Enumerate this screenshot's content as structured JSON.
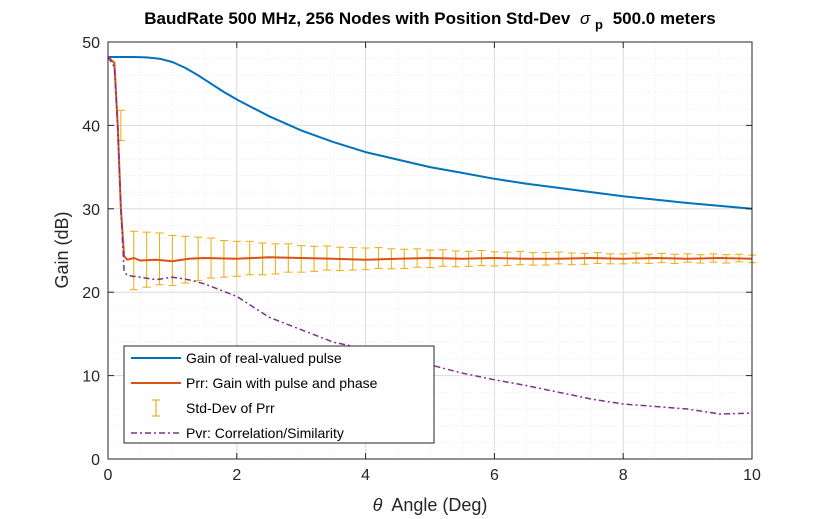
{
  "chart_data": {
    "type": "line",
    "title_main": "BaudRate 500 MHz, 256 Nodes with Position Std-Dev",
    "title_symbol": "σ",
    "title_subscript": "p",
    "title_tail": "500.0 meters",
    "xlabel_symbol": "θ",
    "xlabel_text": "Angle (Deg)",
    "ylabel": "Gain (dB)",
    "xlim": [
      0,
      10
    ],
    "ylim": [
      0,
      50
    ],
    "xticks": [
      "0",
      "2",
      "4",
      "6",
      "8",
      "10"
    ],
    "yticks": [
      "0",
      "10",
      "20",
      "30",
      "40",
      "50"
    ],
    "grid": true,
    "minor_grid": true,
    "legend_position": "bottom-left",
    "series": [
      {
        "name": "Gain of real-valued pulse",
        "style": "solid",
        "color": "#0072BD",
        "x": [
          0,
          0.2,
          0.4,
          0.6,
          0.8,
          1.0,
          1.2,
          1.4,
          1.6,
          1.8,
          2.0,
          2.5,
          3.0,
          3.5,
          4.0,
          4.5,
          5.0,
          5.5,
          6.0,
          6.5,
          7.0,
          7.5,
          8.0,
          8.5,
          9.0,
          9.5,
          10.0
        ],
        "values": [
          48.2,
          48.2,
          48.2,
          48.15,
          48.0,
          47.6,
          46.9,
          46.0,
          45.0,
          44.0,
          43.1,
          41.1,
          39.4,
          38.0,
          36.8,
          35.9,
          35.0,
          34.3,
          33.6,
          33.0,
          32.5,
          32.0,
          31.5,
          31.1,
          30.7,
          30.35,
          30.0
        ]
      },
      {
        "name": "Prr: Gain with pulse and phase",
        "style": "solid",
        "color": "#D95319",
        "x": [
          0,
          0.1,
          0.15,
          0.2,
          0.25,
          0.3,
          0.4,
          0.5,
          0.75,
          1.0,
          1.25,
          1.5,
          2.0,
          2.5,
          3.0,
          3.5,
          4.0,
          4.5,
          5.0,
          5.5,
          6.0,
          6.5,
          7.0,
          7.5,
          8.0,
          8.5,
          9.0,
          9.5,
          10.0
        ],
        "values": [
          48.2,
          47.5,
          40.0,
          30.0,
          24.3,
          23.9,
          24.1,
          23.8,
          23.9,
          23.7,
          24.0,
          24.1,
          24.0,
          24.2,
          24.1,
          24.0,
          23.9,
          24.0,
          24.1,
          24.0,
          24.1,
          24.0,
          24.0,
          24.1,
          24.0,
          24.1,
          24.0,
          24.1,
          24.0
        ]
      },
      {
        "name": "Pvr: Correlation/Similarity",
        "style": "dashdot",
        "color": "#7E2F8E",
        "x": [
          0,
          0.1,
          0.15,
          0.2,
          0.25,
          0.3,
          0.5,
          0.75,
          1.0,
          1.25,
          1.5,
          2.0,
          2.5,
          3.0,
          3.5,
          4.0,
          4.5,
          5.0,
          5.5,
          6.0,
          6.5,
          7.0,
          7.5,
          8.0,
          8.5,
          9.0,
          9.5,
          10.0
        ],
        "values": [
          48.2,
          47.0,
          40.0,
          30.0,
          22.5,
          22.0,
          21.8,
          21.5,
          21.8,
          21.5,
          21.0,
          19.5,
          17.0,
          15.5,
          14.0,
          13.2,
          12.3,
          11.3,
          10.3,
          9.5,
          8.8,
          8.0,
          7.2,
          6.6,
          6.3,
          6.0,
          5.4,
          5.5
        ]
      }
    ],
    "errorbars": {
      "name": "Std-Dev of Prr",
      "color": "#EDB120",
      "x": [
        0.2,
        0.4,
        0.6,
        0.8,
        1.0,
        1.2,
        1.4,
        1.6,
        1.8,
        2.0,
        2.2,
        2.4,
        2.6,
        2.8,
        3.0,
        3.2,
        3.4,
        3.6,
        3.8,
        4.0,
        4.2,
        4.4,
        4.6,
        4.8,
        5.0,
        5.2,
        5.4,
        5.6,
        5.8,
        6.0,
        6.2,
        6.4,
        6.6,
        6.8,
        7.0,
        7.2,
        7.4,
        7.6,
        7.8,
        8.0,
        8.2,
        8.4,
        8.6,
        8.8,
        9.0,
        9.2,
        9.4,
        9.6,
        9.8,
        10.0
      ],
      "center": [
        40.0,
        23.8,
        23.9,
        24.0,
        23.8,
        23.9,
        24.0,
        24.1,
        24.0,
        24.0,
        24.1,
        24.0,
        24.0,
        24.1,
        24.0,
        24.0,
        24.1,
        24.0,
        24.0,
        24.0,
        24.1,
        24.0,
        24.0,
        24.1,
        24.0,
        24.1,
        24.0,
        24.0,
        24.1,
        24.0,
        24.0,
        24.1,
        24.0,
        24.0,
        24.1,
        24.0,
        24.0,
        24.1,
        24.0,
        24.0,
        24.1,
        24.0,
        24.1,
        24.0,
        24.1,
        24.0,
        24.1,
        24.0,
        24.1,
        24.0
      ],
      "half_width": [
        1.8,
        3.5,
        3.3,
        3.1,
        3.0,
        2.8,
        2.6,
        2.4,
        2.2,
        2.1,
        2.0,
        1.9,
        1.8,
        1.7,
        1.6,
        1.5,
        1.45,
        1.4,
        1.35,
        1.3,
        1.25,
        1.2,
        1.15,
        1.1,
        1.05,
        1.0,
        0.95,
        0.9,
        0.9,
        0.85,
        0.8,
        0.8,
        0.75,
        0.75,
        0.7,
        0.7,
        0.65,
        0.65,
        0.6,
        0.6,
        0.6,
        0.55,
        0.55,
        0.55,
        0.5,
        0.5,
        0.5,
        0.5,
        0.45,
        0.45
      ]
    }
  }
}
